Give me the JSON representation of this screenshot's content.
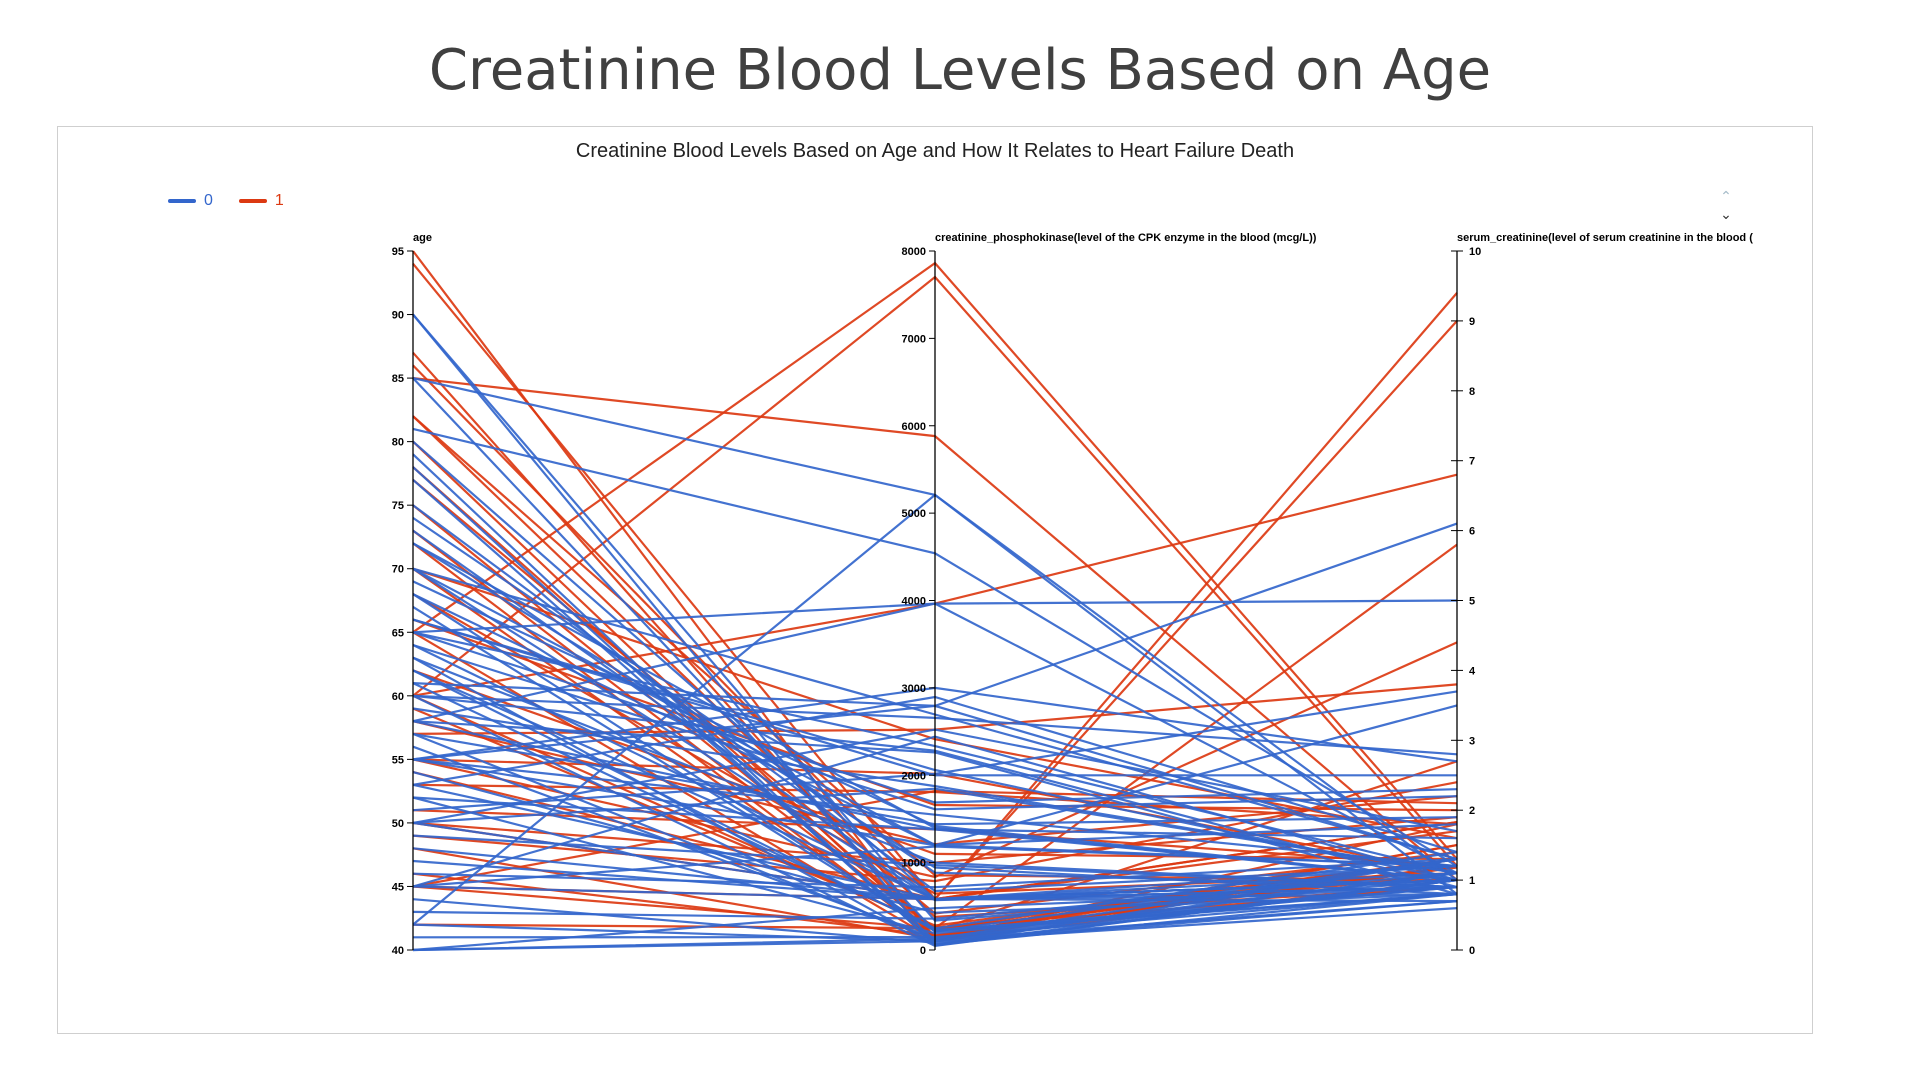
{
  "slide": {
    "title": "Creatinine Blood Levels Based on Age"
  },
  "colors": {
    "0": "#3366cc",
    "1": "#dc3912"
  },
  "chart_data": {
    "type": "parallel-coordinates",
    "title": "Creatinine Blood Levels Based on Age and How It Relates to Heart Failure Death",
    "legend": {
      "placement": "top-left",
      "entries": [
        "0",
        "1"
      ]
    },
    "axes": [
      {
        "name": "age",
        "min": 40,
        "max": 95,
        "ticks": [
          40,
          45,
          50,
          55,
          60,
          65,
          70,
          75,
          80,
          85,
          90,
          95
        ]
      },
      {
        "name": "creatinine_phosphokinase(level of the CPK enzyme in the blood (mcg/L))",
        "min": 0,
        "max": 8000,
        "ticks": [
          0,
          1000,
          2000,
          3000,
          4000,
          5000,
          6000,
          7000,
          8000
        ]
      },
      {
        "name": "serum_creatinine(level of serum creatinine in the blood (",
        "min": 0,
        "max": 10,
        "ticks": [
          0,
          1,
          2,
          3,
          4,
          5,
          6,
          7,
          8,
          9,
          10
        ]
      }
    ],
    "series": [
      {
        "name": "1",
        "color": "#dc3912",
        "records": [
          [
            95,
            112,
            1.0
          ],
          [
            94,
            582,
            1.83
          ],
          [
            87,
            149,
            1.2
          ],
          [
            86,
            582,
            1.83
          ],
          [
            85,
            5882,
            1.0
          ],
          [
            82,
            855,
            1.0
          ],
          [
            82,
            379,
            0.9
          ],
          [
            80,
            146,
            1.18
          ],
          [
            78,
            224,
            2.7
          ],
          [
            75,
            246,
            1.1
          ],
          [
            73,
            231,
            1.2
          ],
          [
            72,
            127,
            1.8
          ],
          [
            70,
            161,
            1.5
          ],
          [
            68,
            646,
            1.1
          ],
          [
            65,
            7861,
            1.3
          ],
          [
            65,
            113,
            1.3
          ],
          [
            60,
            7702,
            1.2
          ],
          [
            60,
            3964,
            6.8
          ],
          [
            60,
            260,
            0.9
          ],
          [
            59,
            280,
            1.3
          ],
          [
            58,
            1211,
            2.2
          ],
          [
            55,
            2017,
            1.1
          ],
          [
            55,
            835,
            4.4
          ],
          [
            53,
            1808,
            1.8
          ],
          [
            50,
            1000,
            1.9
          ],
          [
            50,
            582,
            9.0
          ],
          [
            49,
            789,
            2.4
          ],
          [
            48,
            130,
            1.5
          ],
          [
            46,
            168,
            1.3
          ],
          [
            45,
            582,
            9.4
          ],
          [
            45,
            248,
            5.8
          ],
          [
            45,
            1820,
            2.1
          ],
          [
            42,
            250,
            1.3
          ],
          [
            70,
            2413,
            1.6
          ],
          [
            62,
            1100,
            1.3
          ],
          [
            51,
            1380,
            1.2
          ],
          [
            57,
            2522,
            3.8
          ],
          [
            66,
            1660,
            2.0
          ],
          [
            77,
            418,
            1.4
          ],
          [
            54,
            582,
            1.7
          ]
        ]
      },
      {
        "name": "0",
        "color": "#3366cc",
        "records": [
          [
            90,
            52,
            1.0
          ],
          [
            90,
            337,
            1.0
          ],
          [
            85,
            212,
            1.3
          ],
          [
            85,
            5209,
            1.0
          ],
          [
            81,
            4540,
            1.2
          ],
          [
            80,
            582,
            1.1
          ],
          [
            79,
            55,
            1.3
          ],
          [
            78,
            64,
            1.0
          ],
          [
            77,
            109,
            1.1
          ],
          [
            75,
            675,
            1.2
          ],
          [
            73,
            582,
            1.2
          ],
          [
            72,
            943,
            0.8
          ],
          [
            70,
            2695,
            1.3
          ],
          [
            70,
            571,
            0.9
          ],
          [
            69,
            1419,
            1.0
          ],
          [
            68,
            220,
            0.9
          ],
          [
            67,
            213,
            0.8
          ],
          [
            66,
            2060,
            1.0
          ],
          [
            65,
            2334,
            1.1
          ],
          [
            65,
            3964,
            1.1
          ],
          [
            64,
            1610,
            2.2
          ],
          [
            63,
            61,
            0.8
          ],
          [
            62,
            582,
            1.0
          ],
          [
            61,
            2794,
            1.3
          ],
          [
            60,
            2656,
            2.8
          ],
          [
            60,
            2281,
            0.9
          ],
          [
            59,
            1876,
            1.1
          ],
          [
            58,
            3964,
            5.0
          ],
          [
            58,
            2261,
            0.8
          ],
          [
            57,
            115,
            0.7
          ],
          [
            56,
            135,
            1.1
          ],
          [
            55,
            2794,
            6.1
          ],
          [
            55,
            1199,
            3.5
          ],
          [
            55,
            1548,
            1.2
          ],
          [
            54,
            427,
            0.8
          ],
          [
            53,
            582,
            1.0
          ],
          [
            53,
            2895,
            1.4
          ],
          [
            52,
            1380,
            1.0
          ],
          [
            52,
            191,
            0.9
          ],
          [
            51,
            2017,
            3.7
          ],
          [
            50,
            1846,
            1.1
          ],
          [
            50,
            582,
            0.7
          ],
          [
            50,
            2522,
            1.7
          ],
          [
            49,
            972,
            0.9
          ],
          [
            48,
            582,
            0.8
          ],
          [
            47,
            582,
            1.0
          ],
          [
            46,
            719,
            1.3
          ],
          [
            45,
            582,
            0.9
          ],
          [
            45,
            2442,
            1.0
          ],
          [
            45,
            1185,
            1.2
          ],
          [
            44,
            84,
            0.7
          ],
          [
            43,
            358,
            1.1
          ],
          [
            42,
            5209,
            0.8
          ],
          [
            42,
            102,
            1.0
          ],
          [
            41,
            148,
            0.8
          ],
          [
            40,
            101,
            0.6
          ],
          [
            40,
            478,
            0.9
          ],
          [
            40,
            129,
            1.3
          ],
          [
            60,
            47,
            1.0
          ],
          [
            62,
            231,
            0.8
          ],
          [
            70,
            1202,
            1.8
          ],
          [
            65,
            1688,
            2.3
          ],
          [
            72,
            1396,
            1.0
          ],
          [
            63,
            1000,
            0.9
          ],
          [
            61,
            248,
            1.4
          ],
          [
            58,
            1380,
            1.6
          ],
          [
            55,
            3000,
            2.7
          ],
          [
            57,
            1440,
            1.9
          ],
          [
            64,
            582,
            1.0
          ],
          [
            66,
            2000,
            2.5
          ],
          [
            68,
            1200,
            1.2
          ],
          [
            74,
            885,
            0.9
          ]
        ]
      }
    ]
  },
  "pager": {
    "up": "^",
    "down": "v"
  }
}
